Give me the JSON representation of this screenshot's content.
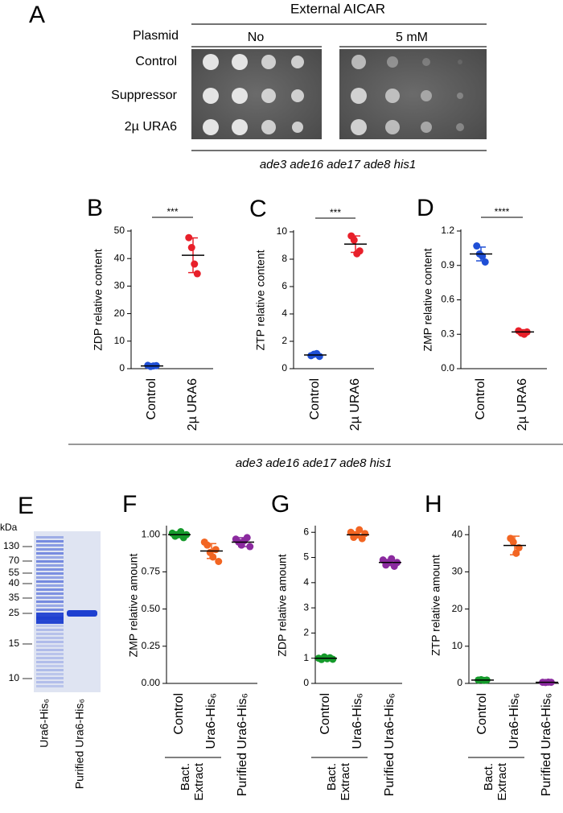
{
  "panel_a": {
    "letter": "A",
    "title": "External AICAR",
    "row_header": "Plasmid",
    "conditions": [
      "No",
      "5 mM"
    ],
    "strains": [
      {
        "name": "Control",
        "color": "#1a1ae6"
      },
      {
        "name": "Suppressor",
        "color": "#e8141c"
      },
      {
        "name": "2µ URA6",
        "color": "#e8141c"
      }
    ],
    "genotype": "ade3 ade16 ade17 ade8 his1"
  },
  "panel_bcd": {
    "genotype": "ade3 ade16 ade17 ade8 his1"
  },
  "panel_e": {
    "letter": "E",
    "unit": "kDa",
    "markers": [
      130,
      70,
      55,
      40,
      35,
      25,
      15,
      10
    ],
    "lanes": [
      {
        "name": "Ura6-His₆",
        "color": "#f26522"
      },
      {
        "name": "Purified Ura6-His₆",
        "color": "#8b2a9f"
      }
    ]
  },
  "chart_data": [
    {
      "type": "dotplot",
      "letter": "B",
      "y_label": "ZDP relative content",
      "ylim": [
        0,
        50
      ],
      "yticks": [
        0,
        10,
        20,
        30,
        40,
        50
      ],
      "significance": "***",
      "groups": [
        {
          "name": "Control",
          "color": "#1f4fd6",
          "values": [
            1.2,
            0.8,
            1.0,
            1.1
          ],
          "mean": 1.0,
          "error": 0.3
        },
        {
          "name": "2µ URA6",
          "color": "#e8202a",
          "values": [
            47.6,
            44,
            38,
            34.5
          ],
          "mean": 41.2,
          "error": 6.3
        }
      ]
    },
    {
      "type": "dotplot",
      "letter": "C",
      "y_label": "ZTP relative content",
      "ylim": [
        0,
        10
      ],
      "yticks": [
        0,
        2,
        4,
        6,
        8,
        10
      ],
      "significance": "***",
      "groups": [
        {
          "name": "Control",
          "color": "#1f4fd6",
          "values": [
            0.95,
            1.05,
            1.1,
            0.9
          ],
          "mean": 1.0,
          "error": 0.08
        },
        {
          "name": "2µ URA6",
          "color": "#e8202a",
          "values": [
            9.7,
            9.4,
            8.4,
            8.6
          ],
          "mean": 9.1,
          "error": 0.6
        }
      ]
    },
    {
      "type": "dotplot",
      "letter": "D",
      "y_label": "ZMP relative content",
      "ylim": [
        0,
        1.2
      ],
      "yticks": [
        {
          "value": 0,
          "label": "0.0"
        },
        0.3,
        0.6,
        0.9,
        1.2
      ],
      "significance": "****",
      "groups": [
        {
          "name": "Control",
          "color": "#1f4fd6",
          "values": [
            1.07,
            1.0,
            0.98,
            0.93
          ],
          "mean": 1.0,
          "error": 0.06
        },
        {
          "name": "2µ URA6",
          "color": "#e8202a",
          "values": [
            0.33,
            0.31,
            0.3,
            0.32
          ],
          "mean": 0.32,
          "error": 0.02
        }
      ]
    },
    {
      "type": "dotplot",
      "letter": "F",
      "y_label": "ZMP relative amount",
      "ylim": [
        0,
        1.05
      ],
      "yticks": [
        {
          "value": 0,
          "label": "0.00"
        },
        {
          "value": 0.25,
          "label": "0.25"
        },
        {
          "value": 0.5,
          "label": "0.50"
        },
        {
          "value": 0.75,
          "label": "0.75"
        },
        {
          "value": 1,
          "label": "1.00"
        }
      ],
      "bracket_label": [
        "Bact.",
        "Extract"
      ],
      "groups": [
        {
          "name": "Control",
          "color": "#159a2b",
          "values": [
            1.01,
            0.99,
            1.0,
            1.02,
            0.98,
            1.0
          ],
          "mean": 1.0,
          "error": 0.02
        },
        {
          "name": "Ura6-His₆",
          "color": "#f26522",
          "values": [
            0.95,
            0.93,
            0.88,
            0.85,
            0.9,
            0.82
          ],
          "mean": 0.89,
          "error": 0.05
        },
        {
          "name": "Purified Ura6-His₆",
          "color": "#8b2a9f",
          "values": [
            0.97,
            0.95,
            0.93,
            0.96,
            0.98,
            0.92
          ],
          "mean": 0.95,
          "error": 0.03
        }
      ]
    },
    {
      "type": "dotplot",
      "letter": "G",
      "y_label": "ZDP relative amount",
      "ylim": [
        0,
        6.2
      ],
      "yticks": [
        0,
        1,
        2,
        3,
        4,
        5,
        6
      ],
      "bracket_label": [
        "Bact.",
        "Extract"
      ],
      "groups": [
        {
          "name": "Control",
          "color": "#159a2b",
          "values": [
            1.0,
            0.95,
            1.05,
            0.98,
            1.02,
            0.96
          ],
          "mean": 1.0,
          "error": 0.04
        },
        {
          "name": "Ura6-His₆",
          "color": "#f26522",
          "values": [
            6.0,
            5.8,
            5.9,
            6.1,
            5.75,
            5.95
          ],
          "mean": 5.9,
          "error": 0.12
        },
        {
          "name": "Purified Ura6-His₆",
          "color": "#8b2a9f",
          "values": [
            4.9,
            4.7,
            4.8,
            4.95,
            4.65,
            4.8
          ],
          "mean": 4.8,
          "error": 0.12
        }
      ]
    },
    {
      "type": "dotplot",
      "letter": "H",
      "y_label": "ZTP relative amount",
      "ylim": [
        0,
        42
      ],
      "yticks": [
        0,
        10,
        20,
        30,
        40
      ],
      "bracket_label": [
        "Bact.",
        "Extract"
      ],
      "groups": [
        {
          "name": "Control",
          "color": "#159a2b",
          "values": [
            0.9,
            1.0,
            0.8,
            0.9
          ],
          "mean": 0.9,
          "error": 0.1
        },
        {
          "name": "Ura6-His₆",
          "color": "#f26522",
          "values": [
            39,
            38,
            35,
            36.5
          ],
          "mean": 37.1,
          "error": 2.5
        },
        {
          "name": "Purified Ura6-His₆",
          "color": "#8b2a9f",
          "values": [
            0.3,
            0.25,
            0.35,
            0.3
          ],
          "mean": 0.3,
          "error": 0.05
        }
      ]
    }
  ]
}
